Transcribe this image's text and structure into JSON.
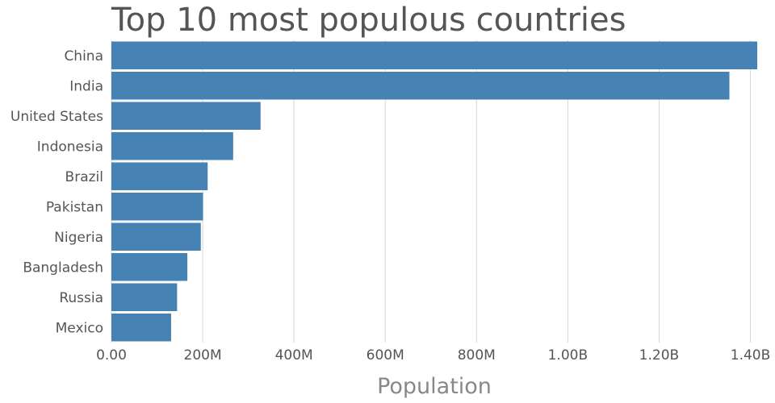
{
  "chart_data": {
    "type": "bar",
    "orientation": "horizontal",
    "title": "Top 10 most populous countries",
    "xlabel": "Population",
    "ylabel": "",
    "categories": [
      "China",
      "India",
      "United States",
      "Indonesia",
      "Brazil",
      "Pakistan",
      "Nigeria",
      "Bangladesh",
      "Russia",
      "Mexico"
    ],
    "values": [
      1415000000,
      1354000000,
      326800000,
      266800000,
      210900000,
      200800000,
      195900000,
      166400000,
      143900000,
      130800000
    ],
    "xlim": [
      0,
      1415000000
    ],
    "x_ticks": [
      {
        "value": 0,
        "label": "0.00"
      },
      {
        "value": 200000000,
        "label": "200M"
      },
      {
        "value": 400000000,
        "label": "400M"
      },
      {
        "value": 600000000,
        "label": "600M"
      },
      {
        "value": 800000000,
        "label": "800M"
      },
      {
        "value": 1000000000,
        "label": "1.00B"
      },
      {
        "value": 1200000000,
        "label": "1.20B"
      },
      {
        "value": 1400000000,
        "label": "1.40B"
      }
    ],
    "grid": true,
    "legend": "none",
    "bar_color": "#4682b4"
  }
}
